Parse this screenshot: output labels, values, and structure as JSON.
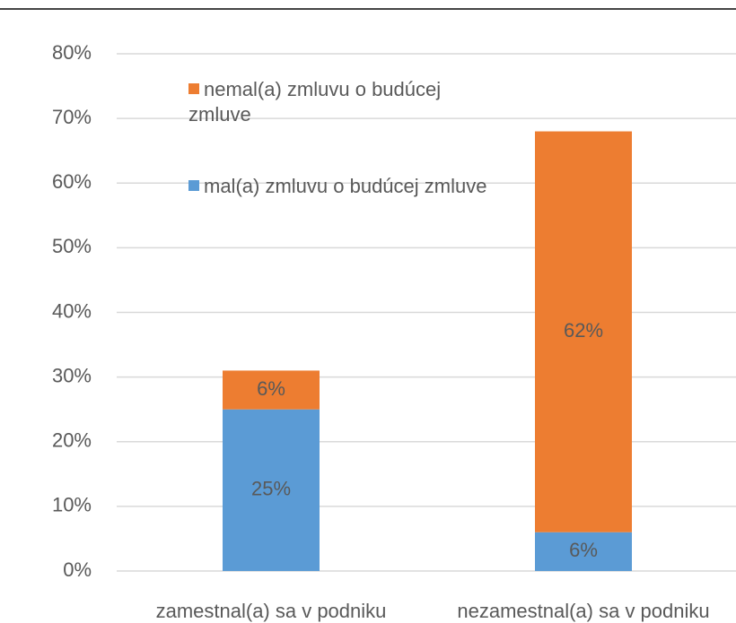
{
  "chart_data": {
    "type": "stacked_bar",
    "categories": [
      "zamestnal(a) sa v podniku",
      "nezamestnal(a) sa v podniku"
    ],
    "series": [
      {
        "name": "mal(a) zmluvu o budúcej zmluve",
        "color": "#5b9bd5",
        "values": [
          25,
          6
        ],
        "value_labels": [
          "25%",
          "6%"
        ]
      },
      {
        "name": "nemal(a) zmluvu o budúcej zmluve",
        "color": "#ed7d31",
        "values": [
          6,
          62
        ],
        "value_labels": [
          "6%",
          "62%"
        ]
      }
    ],
    "ylim": [
      0,
      80
    ],
    "yticks": [
      {
        "value": 0,
        "label": "0%"
      },
      {
        "value": 10,
        "label": "10%"
      },
      {
        "value": 20,
        "label": "20%"
      },
      {
        "value": 30,
        "label": "30%"
      },
      {
        "value": 40,
        "label": "40%"
      },
      {
        "value": 50,
        "label": "50%"
      },
      {
        "value": 60,
        "label": "60%"
      },
      {
        "value": 70,
        "label": "70%"
      },
      {
        "value": 80,
        "label": "80%"
      }
    ],
    "grid": true
  }
}
